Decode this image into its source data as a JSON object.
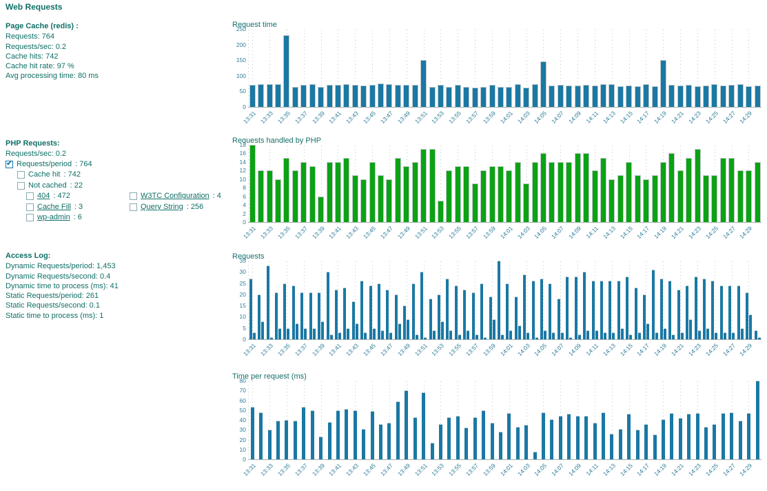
{
  "title": "Web Requests",
  "colors": {
    "text_teal": "#0e6f66",
    "axis_label": "#2e7d96",
    "bar_blue": "#1a78a4",
    "bar_green": "#0ba213",
    "checkbox_checked": "#1878a8"
  },
  "page_cache": {
    "heading": "Page Cache (redis) :",
    "lines": [
      "Requests: 764",
      "Requests/sec: 0.2",
      "Cache hits: 742",
      "Cache hit rate: 97 %",
      "Avg processing time: 80 ms"
    ]
  },
  "php_requests": {
    "heading": "PHP Requests:",
    "rate_line": "Requests/sec: 0.2",
    "checkboxes": [
      {
        "id": "requests-period",
        "label": "Requests/period",
        "value": "764",
        "checked": true,
        "indent": 0,
        "link": false
      },
      {
        "id": "cache-hit",
        "label": "Cache hit",
        "value": "742",
        "checked": false,
        "indent": 1,
        "link": false
      },
      {
        "id": "not-cached",
        "label": "Not cached",
        "value": "22",
        "checked": false,
        "indent": 1,
        "link": false
      },
      {
        "id": "404",
        "label": "404",
        "value": "472",
        "checked": false,
        "indent": 2,
        "link": true
      },
      {
        "id": "cache-fill",
        "label": "Cache Fill",
        "value": "3",
        "checked": false,
        "indent": 2,
        "link": true
      },
      {
        "id": "wp-admin",
        "label": "wp-admin",
        "value": "6",
        "checked": false,
        "indent": 2,
        "link": true
      }
    ],
    "checkboxes_col2": [
      {
        "id": "w3tc-configuration",
        "label": "W3TC Configuration",
        "value": "4",
        "checked": false,
        "indent": 0,
        "link": true
      },
      {
        "id": "query-string",
        "label": "Query String",
        "value": "256",
        "checked": false,
        "indent": 0,
        "link": true
      }
    ]
  },
  "access_log": {
    "heading": "Access Log:",
    "lines": [
      "Dynamic Requests/period: 1,453",
      "Dynamic Requests/second: 0.4",
      "Dynamic time to process (ms): 41",
      "Static Requests/period: 261",
      "Static Requests/second: 0.1",
      "Static time to process (ms): 1"
    ]
  },
  "chart_data": {
    "x_axis": "time, one bar per minute from 13:31 to 14:30, tick labels every 2 minutes",
    "x_tick_labels": [
      "13:31",
      "13:33",
      "13:35",
      "13:37",
      "13:39",
      "13:41",
      "13:43",
      "13:45",
      "13:47",
      "13:49",
      "13:51",
      "13:53",
      "13:55",
      "13:57",
      "13:59",
      "14:01",
      "14:03",
      "14:05",
      "14:07",
      "14:09",
      "14:11",
      "14:13",
      "14:15",
      "14:17",
      "14:19",
      "14:21",
      "14:23",
      "14:25",
      "14:27",
      "14:29"
    ],
    "grid": "dotted vertical gridlines at labeled ticks, legend off",
    "charts": [
      {
        "id": "request-time",
        "type": "bar",
        "title": "Request time",
        "ylim": [
          0,
          250
        ],
        "yticks": [
          0,
          50,
          100,
          150,
          200,
          250
        ],
        "bar_color": "#1a78a4",
        "bar_style": "wide",
        "values": [
          70,
          72,
          72,
          72,
          230,
          65,
          70,
          72,
          65,
          70,
          70,
          72,
          70,
          68,
          70,
          75,
          72,
          70,
          70,
          70,
          150,
          65,
          70,
          65,
          70,
          65,
          63,
          65,
          70,
          65,
          65,
          72,
          63,
          73,
          145,
          68,
          70,
          68,
          68,
          70,
          68,
          72,
          73,
          67,
          68,
          67,
          73,
          67,
          150,
          70,
          68,
          70,
          66,
          68,
          74,
          68,
          70,
          72,
          66,
          68
        ]
      },
      {
        "id": "requests-handled-by-php",
        "type": "bar",
        "title": "Requests handled by PHP",
        "ylim": [
          0,
          18
        ],
        "yticks": [
          0,
          2,
          4,
          6,
          8,
          10,
          12,
          14,
          16,
          18
        ],
        "bar_color": "#0ba213",
        "bar_style": "wide",
        "values": [
          18,
          12,
          12,
          10,
          15,
          12,
          14,
          13,
          6,
          14,
          14,
          15,
          11,
          10,
          14,
          11,
          10,
          15,
          13,
          14,
          17,
          17,
          5,
          12,
          13,
          13,
          9,
          12,
          13,
          13,
          12,
          14,
          9,
          14,
          16,
          14,
          14,
          14,
          16,
          16,
          12,
          15,
          10,
          11,
          14,
          11,
          10,
          11,
          14,
          16,
          12,
          15,
          17,
          11,
          11,
          15,
          15,
          12,
          12,
          14
        ]
      },
      {
        "id": "requests",
        "type": "grouped-bar",
        "title": "Requests",
        "ylim": [
          0,
          35
        ],
        "yticks": [
          0,
          5,
          10,
          15,
          20,
          25,
          30,
          35
        ],
        "bar_color": "#1a78a4",
        "bar_style": "pair",
        "series": [
          {
            "name": "dynamic",
            "values": [
              27,
              20,
              33,
              21,
              25,
              24,
              21,
              21,
              21,
              30,
              22,
              23,
              17,
              26,
              24,
              25,
              22,
              20,
              15,
              25,
              30,
              18,
              20,
              27,
              24,
              22,
              21,
              25,
              19,
              35,
              25,
              19,
              29,
              26,
              27,
              25,
              18,
              28,
              28,
              30,
              26,
              26,
              26,
              26,
              28,
              23,
              20,
              31,
              27,
              26,
              22,
              24,
              28,
              27,
              26,
              24,
              24,
              24,
              21,
              4
            ]
          },
          {
            "name": "static",
            "values": [
              3,
              8,
              1,
              5,
              5,
              7,
              5,
              5,
              8,
              2,
              3,
              5,
              7,
              3,
              5,
              4,
              3,
              7,
              9,
              2,
              1,
              4,
              8,
              4,
              2,
              4,
              2,
              1,
              9,
              2,
              4,
              6,
              3,
              1,
              4,
              3,
              3,
              1,
              2,
              4,
              4,
              3,
              3,
              5,
              2,
              3,
              7,
              3,
              5,
              2,
              3,
              9,
              4,
              5,
              3,
              3,
              3,
              5,
              11,
              1
            ]
          }
        ]
      },
      {
        "id": "time-per-request",
        "type": "bar",
        "title": "Time per request (ms)",
        "ylim": [
          0,
          80
        ],
        "yticks": [
          0,
          10,
          20,
          30,
          40,
          50,
          60,
          70,
          80
        ],
        "bar_color": "#1a78a4",
        "bar_style": "narrow",
        "values": [
          53,
          48,
          30,
          39,
          40,
          39,
          53,
          50,
          23,
          38,
          50,
          51,
          50,
          31,
          49,
          36,
          37,
          59,
          70,
          43,
          68,
          17,
          36,
          43,
          44,
          32,
          43,
          50,
          37,
          28,
          47,
          33,
          35,
          8,
          48,
          41,
          44,
          46,
          44,
          44,
          37,
          48,
          26,
          31,
          46,
          30,
          36,
          25,
          41,
          47,
          42,
          46,
          47,
          33,
          36,
          47,
          48,
          39,
          47,
          80
        ]
      }
    ]
  }
}
